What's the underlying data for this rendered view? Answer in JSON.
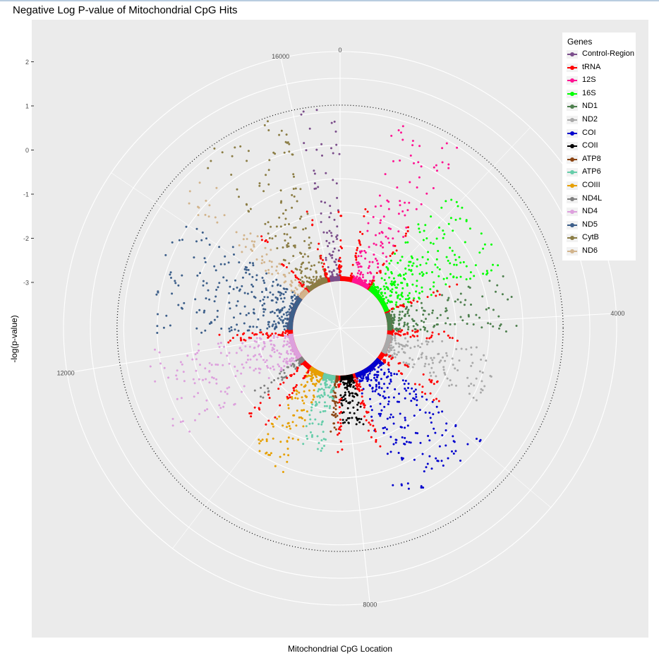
{
  "chart_data": {
    "type": "scatter",
    "projection": "polar",
    "title": "Negative Log P-value of Mitochondrial CpG Hits",
    "xlabel": "Mitochondrial CpG Location",
    "ylabel": "-log(p-value)",
    "theta_ticks": [
      "0",
      "4000",
      "8000",
      "12000",
      "16000"
    ],
    "theta_range": [
      0,
      16569
    ],
    "r_ticks": [
      "-3",
      "-2",
      "-1",
      "0",
      "1",
      "2"
    ],
    "r_range": [
      -4.2,
      2.8
    ],
    "significance_threshold": 1.2,
    "legend_title": "Genes",
    "legend_position": "top-right",
    "series": [
      {
        "name": "Control-Region",
        "color": "#7b4e8b",
        "start": 16024,
        "end": 16569,
        "max_value": 1.2
      },
      {
        "name": "tRNA",
        "color": "#ff0000",
        "start": null,
        "end": null,
        "max_value": 0.2
      },
      {
        "name": "12S",
        "color": "#ff1493",
        "start": 648,
        "end": 1601,
        "max_value": 0.9
      },
      {
        "name": "16S",
        "color": "#00ff00",
        "start": 1671,
        "end": 3229,
        "max_value": -0.3
      },
      {
        "name": "ND1",
        "color": "#4d7f4d",
        "start": 3307,
        "end": 4262,
        "max_value": -0.2
      },
      {
        "name": "ND2",
        "color": "#a9a9a9",
        "start": 4470,
        "end": 5511,
        "max_value": -0.8
      },
      {
        "name": "COI",
        "color": "#0000cd",
        "start": 5904,
        "end": 7445,
        "max_value": -0.1
      },
      {
        "name": "COII",
        "color": "#000000",
        "start": 7586,
        "end": 8269,
        "max_value": -2.6
      },
      {
        "name": "ATP8",
        "color": "#8b4513",
        "start": 8366,
        "end": 8572,
        "max_value": -2.4
      },
      {
        "name": "ATP6",
        "color": "#66cdaa",
        "start": 8527,
        "end": 9207,
        "max_value": -1.8
      },
      {
        "name": "COIII",
        "color": "#e69f00",
        "start": 9207,
        "end": 9990,
        "max_value": -0.9
      },
      {
        "name": "ND4L",
        "color": "#808080",
        "start": 10470,
        "end": 10766,
        "max_value": -2.4
      },
      {
        "name": "ND4",
        "color": "#dda0dd",
        "start": 10760,
        "end": 12137,
        "max_value": 0.3
      },
      {
        "name": "ND5",
        "color": "#3d5f8a",
        "start": 12337,
        "end": 14148,
        "max_value": 0.1
      },
      {
        "name": "CytB",
        "color": "#8b7d45",
        "start": 14747,
        "end": 15887,
        "max_value": 1.1
      },
      {
        "name": "ND6",
        "color": "#d2b48c",
        "start": 14149,
        "end": 14673,
        "max_value": 0.6
      }
    ]
  }
}
